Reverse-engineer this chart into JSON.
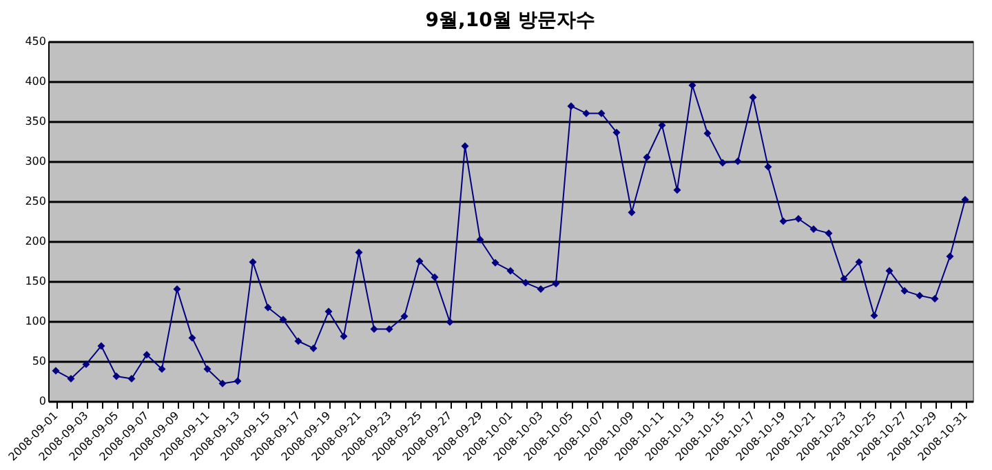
{
  "chart_data": {
    "type": "line",
    "title": "9월,10월 방문자수",
    "categories": [
      "2008-09-01",
      null,
      "2008-09-03",
      null,
      "2008-09-05",
      null,
      "2008-09-07",
      null,
      "2008-09-09",
      null,
      "2008-09-11",
      null,
      "2008-09-13",
      null,
      "2008-09-15",
      null,
      "2008-09-17",
      null,
      "2008-09-19",
      null,
      "2008-09-21",
      null,
      "2008-09-23",
      null,
      "2008-09-25",
      null,
      "2008-09-27",
      null,
      "2008-09-29",
      null,
      "2008-10-01",
      null,
      "2008-10-03",
      null,
      "2008-10-05",
      null,
      "2008-10-07",
      null,
      "2008-10-09",
      null,
      "2008-10-11",
      null,
      "2008-10-13",
      null,
      "2008-10-15",
      null,
      "2008-10-17",
      null,
      "2008-10-19",
      null,
      "2008-10-21",
      null,
      "2008-10-23",
      null,
      "2008-10-25",
      null,
      "2008-10-27",
      null,
      "2008-10-29",
      null,
      "2008-10-31"
    ],
    "series": [
      {
        "color": "#000080",
        "values": [
          38,
          28,
          46,
          69,
          31,
          28,
          58,
          40,
          140,
          79,
          40,
          22,
          25,
          174,
          117,
          102,
          75,
          66,
          112,
          81,
          186,
          90,
          90,
          106,
          175,
          155,
          99,
          319,
          202,
          173,
          163,
          148,
          140,
          147,
          369,
          360,
          360,
          336,
          236,
          305,
          345,
          264,
          395,
          335,
          298,
          300,
          380,
          293,
          225,
          228,
          215,
          210,
          153,
          174,
          107,
          163,
          138,
          132,
          128,
          181,
          252
        ]
      }
    ],
    "ylim": [
      0,
      450
    ],
    "yticks": [
      0,
      50,
      100,
      150,
      200,
      250,
      300,
      350,
      400,
      450
    ],
    "grid": "y",
    "marker": "diamond"
  }
}
